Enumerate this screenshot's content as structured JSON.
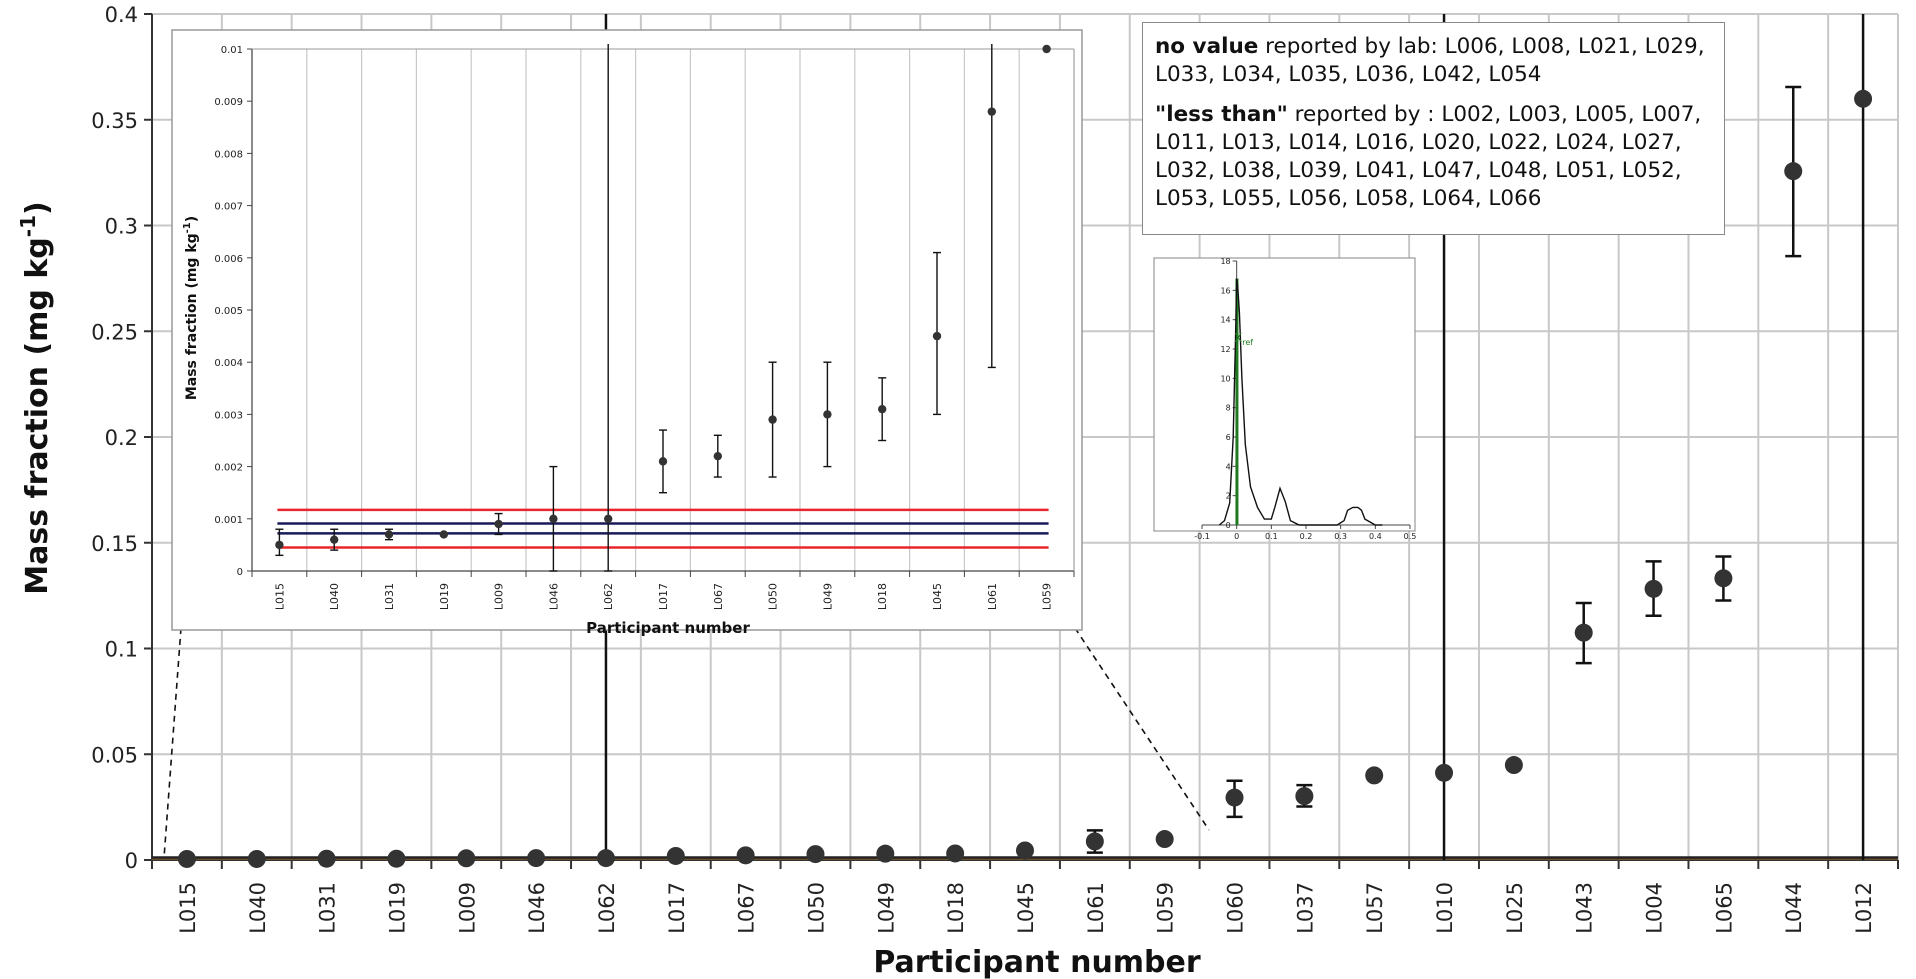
{
  "notes": {
    "no_value_head": "no value",
    "no_value_text": " reported by lab: L006, L008, L021, L029, L033, L034, L035, L036, L042, L054",
    "less_than_head": "\"less than\"",
    "less_than_text": " reported by : L002, L003, L005, L007, L011, L013, L014, L016, L020, L022, L024, L027, L032, L038, L039, L041, L047, L048, L051, L052, L053, L055, L056, L058, L064, L066"
  },
  "colors": {
    "marker": "#333333",
    "grid": "#c8c8c8",
    "limit_red": "#e8262c",
    "limit_navy": "#1a1a5a",
    "reference_green": "#1f7a1f"
  },
  "chart_data": [
    {
      "type": "scatter",
      "chart": "main",
      "xlabel": "Participant number",
      "ylabel": "Mass fraction (mg kg",
      "ylabel_sup": "-1",
      "ylabel_end": ")",
      "ylim": [
        0,
        0.4
      ],
      "yticks": [
        0,
        0.05,
        0.1,
        0.15,
        0.2,
        0.25,
        0.3,
        0.35,
        0.4
      ],
      "ytick_labels": [
        "0",
        "0.05",
        "0.1",
        "0.15",
        "0.2",
        "0.25",
        "0.3",
        "0.35",
        "0.4"
      ],
      "grid": true,
      "categories": [
        "L015",
        "L040",
        "L031",
        "L019",
        "L009",
        "L046",
        "L062",
        "L017",
        "L067",
        "L050",
        "L049",
        "L018",
        "L045",
        "L061",
        "L059",
        "L060",
        "L037",
        "L057",
        "L010",
        "L025",
        "L043",
        "L004",
        "L065",
        "L044",
        "L012"
      ],
      "values": [
        0.0005,
        0.0005,
        0.0006,
        0.0006,
        0.0008,
        0.0009,
        0.0009,
        0.0019,
        0.0022,
        0.0028,
        0.003,
        0.0031,
        0.0045,
        0.0088,
        0.0099,
        0.0295,
        0.0302,
        0.04,
        0.0412,
        0.0449,
        0.1075,
        0.1282,
        0.1332,
        0.3257,
        0.3599
      ],
      "error_low": [
        null,
        null,
        null,
        null,
        null,
        null,
        0.4,
        null,
        null,
        null,
        null,
        null,
        null,
        0.0035,
        null,
        0.0204,
        0.0253,
        null,
        0.4,
        null,
        0.0931,
        0.1155,
        0.1227,
        0.2855,
        0.4
      ],
      "error_high": [
        null,
        null,
        null,
        null,
        null,
        null,
        0.4,
        null,
        null,
        null,
        null,
        null,
        null,
        0.014,
        null,
        0.0375,
        0.0354,
        null,
        0.4,
        null,
        0.1215,
        0.1412,
        0.1435,
        0.3655,
        0.4
      ],
      "reference_lines": [
        0.0007,
        0.0012
      ]
    },
    {
      "type": "scatter",
      "chart": "zoom-inset",
      "xlabel": "Participant number",
      "ylabel": "Mass fraction (mg kg",
      "ylabel_sup": "-1",
      "ylabel_end": ")",
      "ylim": [
        0,
        0.01
      ],
      "yticks": [
        0,
        0.001,
        0.002,
        0.003,
        0.004,
        0.005,
        0.006,
        0.007,
        0.008,
        0.009,
        0.01
      ],
      "ytick_labels": [
        "0",
        "0.001",
        "0.002",
        "0.003",
        "0.004",
        "0.005",
        "0.006",
        "0.007",
        "0.008",
        "0.009",
        "0.01"
      ],
      "grid": true,
      "categories": [
        "L015",
        "L040",
        "L031",
        "L019",
        "L009",
        "L046",
        "L062",
        "L017",
        "L067",
        "L050",
        "L049",
        "L018",
        "L045",
        "L061",
        "L059"
      ],
      "values": [
        0.0005,
        0.0006,
        0.0007,
        0.0007,
        0.0009,
        0.001,
        0.001,
        0.0021,
        0.0022,
        0.0029,
        0.003,
        0.0031,
        0.0045,
        0.0088,
        0.01
      ],
      "error_low": [
        0.0003,
        0.0004,
        0.0006,
        null,
        0.0007,
        0,
        0,
        0.0015,
        0.0018,
        0.0018,
        0.002,
        0.0025,
        0.003,
        0.0039,
        null
      ],
      "error_high": [
        0.0008,
        0.0008,
        0.0008,
        null,
        0.0011,
        0.002,
        0.01,
        0.0027,
        0.0026,
        0.004,
        0.004,
        0.0037,
        0.0061,
        0.01,
        null
      ],
      "limit_lines_red": [
        0.00045,
        0.00117
      ],
      "limit_lines_navy": [
        0.00072,
        0.00091
      ]
    },
    {
      "type": "line",
      "chart": "kernel-density-inset",
      "xlim": [
        -0.1,
        0.5
      ],
      "ylim": [
        0,
        18
      ],
      "xticks": [
        -0.1,
        0,
        0.1,
        0.2,
        0.3,
        0.4,
        0.5
      ],
      "xtick_labels": [
        "-0.1",
        "0",
        "0.1",
        "0.2",
        "0.3",
        "0.4",
        "0.5"
      ],
      "yticks": [
        0,
        2,
        4,
        6,
        8,
        10,
        12,
        14,
        16,
        18
      ],
      "ytick_labels": [
        "0",
        "2",
        "4",
        "6",
        "8",
        "10",
        "12",
        "14",
        "16",
        "18"
      ],
      "x": [
        -0.05,
        -0.035,
        -0.02,
        -0.01,
        -0.003,
        0.0,
        0.003,
        0.008,
        0.015,
        0.025,
        0.04,
        0.06,
        0.08,
        0.1,
        0.11,
        0.125,
        0.14,
        0.155,
        0.18,
        0.22,
        0.26,
        0.29,
        0.31,
        0.32,
        0.335,
        0.35,
        0.36,
        0.37,
        0.4,
        0.42
      ],
      "y": [
        0,
        0.3,
        1.5,
        6,
        13,
        16.8,
        16.3,
        14.5,
        10,
        5.5,
        2.6,
        1.2,
        0.4,
        0.4,
        1.2,
        2.5,
        1.6,
        0.3,
        0,
        0,
        0,
        0,
        0.3,
        1.0,
        1.2,
        1.2,
        1.0,
        0.4,
        0,
        0
      ],
      "reference_x": 0.0008,
      "reference_label": "X",
      "reference_label_sub": "ref"
    }
  ]
}
